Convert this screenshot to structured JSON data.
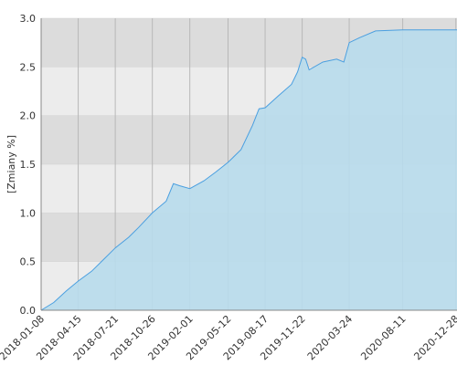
{
  "chart_data": {
    "type": "area",
    "y_label": "[Zmiany %]",
    "x": [
      "2018-01-08",
      "2018-02-10",
      "2018-03-15",
      "2018-04-15",
      "2018-05-20",
      "2018-06-20",
      "2018-07-21",
      "2018-08-25",
      "2018-09-20",
      "2018-10-26",
      "2018-12-01",
      "2018-12-20",
      "2019-01-05",
      "2019-02-01",
      "2019-03-10",
      "2019-04-10",
      "2019-05-12",
      "2019-06-15",
      "2019-07-15",
      "2019-08-01",
      "2019-08-17",
      "2019-09-20",
      "2019-10-25",
      "2019-11-10",
      "2019-11-22",
      "2019-12-01",
      "2019-12-10",
      "2020-01-15",
      "2020-02-20",
      "2020-03-10",
      "2020-03-24",
      "2020-04-20",
      "2020-06-01",
      "2020-08-11",
      "2020-12-31"
    ],
    "values": [
      0.0,
      0.08,
      0.2,
      0.3,
      0.4,
      0.52,
      0.64,
      0.75,
      0.85,
      1.0,
      1.12,
      1.3,
      1.28,
      1.25,
      1.33,
      1.42,
      1.52,
      1.65,
      1.9,
      2.07,
      2.08,
      2.2,
      2.32,
      2.45,
      2.6,
      2.58,
      2.47,
      2.55,
      2.58,
      2.55,
      2.75,
      2.8,
      2.87,
      2.88,
      2.88
    ],
    "color": "#4a9fe0",
    "fill": "#b8dcec",
    "xlim": [
      "2018-01-08",
      "2020-12-31"
    ],
    "xticks": [
      "2018-01-08",
      "2018-04-15",
      "2018-07-21",
      "2018-10-26",
      "2019-02-01",
      "2019-05-12",
      "2019-08-17",
      "2019-11-22",
      "2020-03-24",
      "2020-08-11",
      "2020-12-28"
    ],
    "ylim": [
      0,
      3
    ],
    "yticks": [
      {
        "value": 0,
        "label": "0.0"
      },
      0.5,
      {
        "value": 1,
        "label": "1.0"
      },
      1.5,
      {
        "value": 2,
        "label": "2.0"
      },
      2.5,
      {
        "value": 3,
        "label": "3.0"
      }
    ],
    "band_colors": [
      "#dcdcdc",
      "#ececec"
    ]
  }
}
